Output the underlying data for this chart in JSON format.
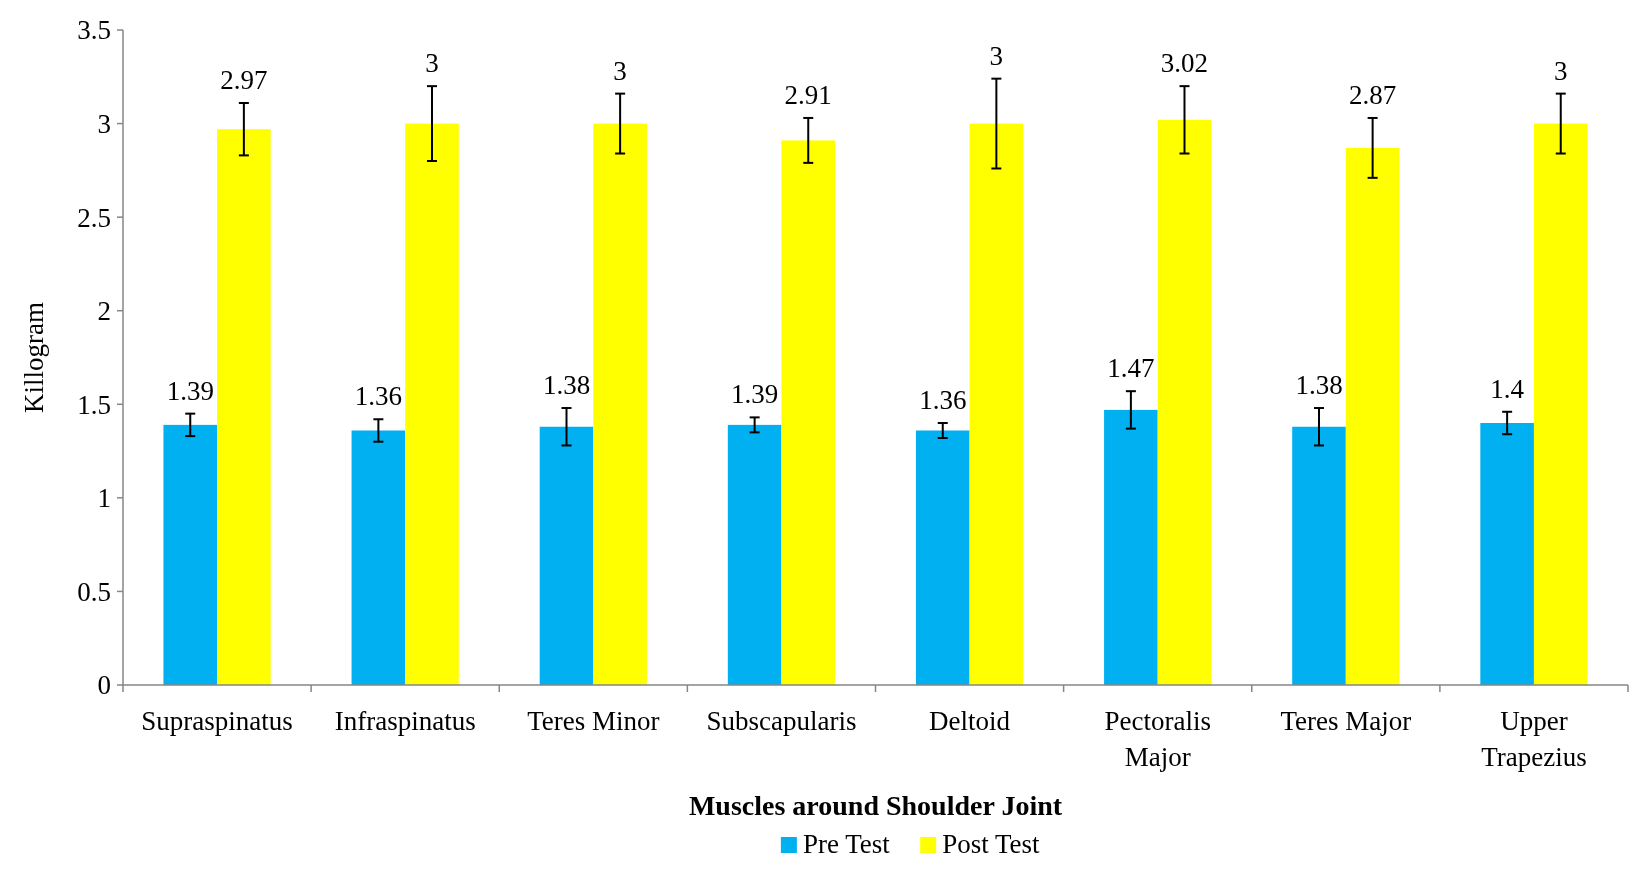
{
  "chart_data": {
    "type": "bar",
    "xlabel": "Muscles around Shoulder Joint",
    "ylabel": "Killogram",
    "categories": [
      "Supraspinatus",
      "Infraspinatus",
      "Teres Minor",
      "Subscapularis",
      "Deltoid",
      "Pectoralis Major",
      "Teres Major",
      "Upper Trapezius"
    ],
    "series": [
      {
        "name": "Pre Test",
        "color": "#00b0f0",
        "values": [
          1.39,
          1.36,
          1.38,
          1.39,
          1.36,
          1.47,
          1.38,
          1.4
        ],
        "errors": [
          0.06,
          0.06,
          0.1,
          0.04,
          0.04,
          0.1,
          0.1,
          0.06
        ]
      },
      {
        "name": "Post Test",
        "color": "#ffff00",
        "values": [
          2.97,
          3,
          3,
          2.91,
          3,
          3.02,
          2.87,
          3
        ],
        "errors": [
          0.14,
          0.2,
          0.16,
          0.12,
          0.24,
          0.18,
          0.16,
          0.16
        ]
      }
    ],
    "ylim": [
      0,
      3.5
    ],
    "yticks": [
      0,
      0.5,
      1,
      1.5,
      2,
      2.5,
      3,
      3.5
    ],
    "data_labels": true,
    "grid": false,
    "legend": "bottom"
  }
}
